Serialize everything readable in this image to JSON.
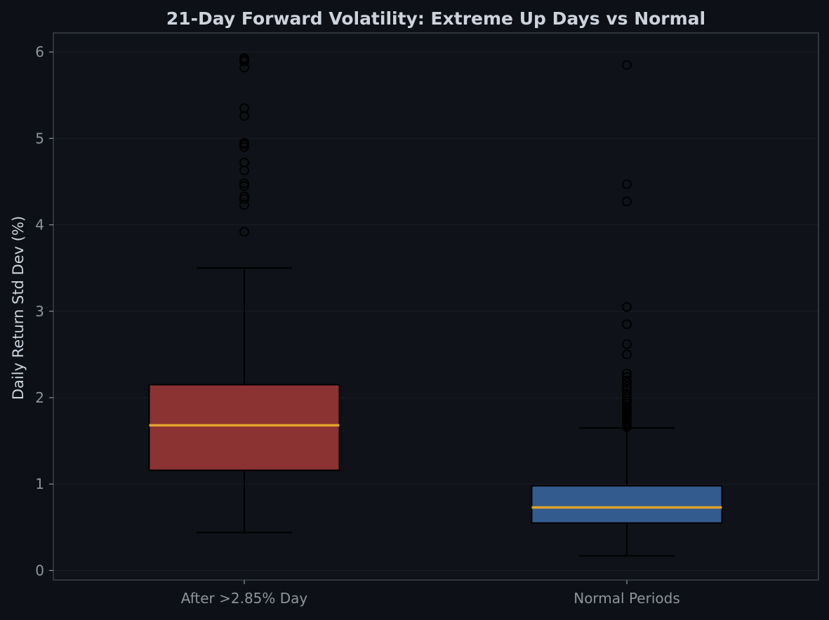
{
  "colors": {
    "background": "#0d1017",
    "plot_background": "#0f1218",
    "frame": "#3a3f4a",
    "grid": "#1a1e26",
    "title": "#cdd3dc",
    "axis_label": "#cdd3dc",
    "tick_label": "#8e949d",
    "median": "#e2a32c",
    "whisker": "#000000",
    "flier": "#000000"
  },
  "chart_data": {
    "type": "box",
    "title": "21-Day Forward Volatility: Extreme Up Days vs Normal",
    "xlabel": "",
    "ylabel": "Daily Return Std Dev (%)",
    "ylim": [
      -0.11,
      6.22
    ],
    "yticks": [
      0,
      1,
      2,
      3,
      4,
      5,
      6
    ],
    "grid": true,
    "categories": [
      "After >2.85% Day",
      "Normal Periods"
    ],
    "boxes": [
      {
        "category": "After >2.85% Day",
        "color": "#8b3232",
        "whisker_low": 0.44,
        "q1": 1.16,
        "median": 1.68,
        "q3": 2.15,
        "whisker_high": 3.5,
        "outliers": [
          3.92,
          4.23,
          4.3,
          4.33,
          4.45,
          4.48,
          4.63,
          4.72,
          4.9,
          4.93,
          4.95,
          5.26,
          5.35,
          5.82,
          5.89,
          5.91,
          5.93
        ]
      },
      {
        "category": "Normal Periods",
        "color": "#335b8e",
        "whisker_low": 0.17,
        "q1": 0.55,
        "median": 0.73,
        "q3": 0.98,
        "whisker_high": 1.65,
        "outliers": [
          1.66,
          1.68,
          1.7,
          1.72,
          1.74,
          1.76,
          1.78,
          1.8,
          1.82,
          1.84,
          1.86,
          1.88,
          1.9,
          1.93,
          1.96,
          1.99,
          2.02,
          2.05,
          2.09,
          2.13,
          2.17,
          2.2,
          2.24,
          2.28,
          2.5,
          2.62,
          2.85,
          3.05,
          4.27,
          4.47,
          5.85
        ]
      }
    ]
  }
}
